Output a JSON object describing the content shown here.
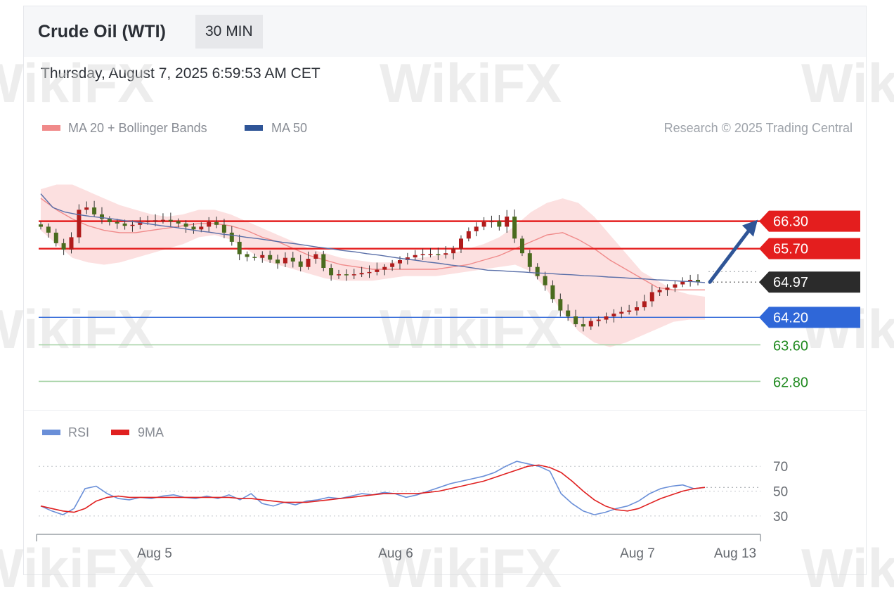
{
  "header": {
    "title": "Crude Oil (WTI)",
    "timeframe": "30 MIN",
    "datetime": "Thursday, August 7, 2025 6:59:53 AM CET"
  },
  "legend_main": [
    {
      "label": "MA 20 + Bollinger Bands",
      "color": "#f08a8a"
    },
    {
      "label": "MA 50",
      "color": "#2f5597"
    }
  ],
  "legend_rsi": [
    {
      "label": "RSI",
      "color": "#6a8fd8"
    },
    {
      "label": "9MA",
      "color": "#e02020"
    }
  ],
  "credit": "Research © 2025 Trading Central",
  "watermark": "WikiFX",
  "chart_data": [
    {
      "type": "line",
      "ylim": [
        62.5,
        67.6
      ],
      "x_ticks": [
        "Aug 5",
        "Aug 6",
        "Aug 7",
        "Aug 13"
      ],
      "price_levels": [
        {
          "value": 66.3,
          "label": "66.30",
          "kind": "resistance",
          "color": "#e41e1e"
        },
        {
          "value": 65.7,
          "label": "65.70",
          "kind": "resistance",
          "color": "#e41e1e"
        },
        {
          "value": 64.97,
          "label": "64.97",
          "kind": "last",
          "color": "#2b2b2b"
        },
        {
          "value": 64.2,
          "label": "64.20",
          "kind": "pivot",
          "color": "#2f67d8"
        },
        {
          "value": 63.6,
          "label": "63.60",
          "kind": "support",
          "color": "#1f8a1f"
        },
        {
          "value": 62.8,
          "label": "62.80",
          "kind": "support",
          "color": "#1f8a1f"
        }
      ],
      "forecast_target": 66.3,
      "close": [
        66.18,
        66.05,
        65.82,
        65.68,
        65.95,
        66.55,
        66.6,
        66.45,
        66.35,
        66.28,
        66.25,
        66.2,
        66.22,
        66.28,
        66.3,
        66.32,
        66.33,
        66.3,
        66.25,
        66.18,
        66.12,
        66.18,
        66.28,
        66.22,
        66.05,
        65.85,
        65.58,
        65.52,
        65.5,
        65.56,
        65.46,
        65.38,
        65.5,
        65.42,
        65.3,
        65.48,
        65.58,
        65.28,
        65.12,
        65.14,
        65.13,
        65.14,
        65.17,
        65.19,
        65.24,
        65.3,
        65.38,
        65.45,
        65.51,
        65.56,
        65.58,
        65.58,
        65.57,
        65.6,
        65.7,
        65.92,
        66.08,
        66.18,
        66.28,
        66.3,
        66.18,
        66.4,
        65.92,
        65.6,
        65.3,
        65.1,
        64.9,
        64.6,
        64.35,
        64.22,
        64.05,
        64.0,
        64.12,
        64.15,
        64.22,
        64.28,
        64.32,
        64.35,
        64.42,
        64.55,
        64.75,
        64.8,
        64.85,
        64.92,
        64.98,
        65.02,
        64.97
      ],
      "ma50": [
        66.9,
        66.6,
        66.5,
        66.45,
        66.41,
        66.38,
        66.35,
        66.31,
        66.28,
        66.24,
        66.2,
        66.17,
        66.13,
        66.09,
        66.06,
        66.02,
        65.99,
        65.95,
        65.92,
        65.88,
        65.84,
        65.81,
        65.77,
        65.73,
        65.7,
        65.66,
        65.63,
        65.59,
        65.56,
        65.52,
        65.48,
        65.45,
        65.41,
        65.38,
        65.34,
        65.31,
        65.27,
        65.23,
        65.22,
        65.2,
        65.19,
        65.17,
        65.16,
        65.14,
        65.13,
        65.11,
        65.1,
        65.08,
        65.07,
        65.05,
        65.04,
        65.02,
        65.01,
        64.99,
        64.98,
        64.96
      ],
      "bollinger_mid": [
        66.8,
        66.55,
        66.35,
        66.2,
        66.1,
        66.05,
        66.05,
        66.1,
        66.15,
        66.2,
        66.25,
        66.25,
        66.2,
        66.1,
        65.95,
        65.85,
        65.7,
        65.55,
        65.45,
        65.35,
        65.3,
        65.25,
        65.25,
        65.25,
        65.25,
        65.25,
        65.3,
        65.35,
        65.45,
        65.55,
        65.7,
        65.85,
        66.0,
        66.05,
        65.9,
        65.7,
        65.45,
        65.25,
        65.05,
        64.85,
        64.8,
        64.8,
        64.8
      ],
      "bollinger_upper": [
        67.0,
        67.1,
        67.1,
        66.95,
        66.8,
        66.65,
        66.55,
        66.45,
        66.4,
        66.45,
        66.55,
        66.55,
        66.45,
        66.3,
        66.15,
        66.0,
        65.85,
        65.7,
        65.6,
        65.5,
        65.45,
        65.4,
        65.4,
        65.45,
        65.5,
        65.55,
        65.6,
        65.7,
        65.8,
        65.95,
        66.2,
        66.5,
        66.7,
        66.8,
        66.7,
        66.4,
        66.0,
        65.6,
        65.2,
        65.0,
        64.8,
        64.7,
        64.65
      ],
      "bollinger_lower": [
        66.1,
        65.8,
        65.5,
        65.4,
        65.35,
        65.4,
        65.5,
        65.6,
        65.7,
        65.8,
        65.95,
        66.0,
        65.9,
        65.7,
        65.45,
        65.35,
        65.25,
        65.15,
        65.05,
        65.0,
        65.0,
        65.0,
        65.05,
        65.1,
        65.1,
        65.1,
        65.15,
        65.2,
        65.25,
        65.3,
        65.35,
        65.2,
        64.8,
        64.3,
        63.9,
        63.65,
        63.55,
        63.65,
        63.8,
        63.95,
        64.1,
        64.15,
        64.15
      ]
    },
    {
      "type": "line",
      "title": "RSI",
      "ylim": [
        22,
        82
      ],
      "y_ticks": [
        70,
        50,
        30
      ],
      "rsi": [
        38,
        34,
        31,
        36,
        52,
        54,
        48,
        44,
        43,
        45,
        44,
        46,
        47,
        45,
        44,
        46,
        44,
        47,
        43,
        48,
        40,
        38,
        41,
        39,
        42,
        43,
        45,
        44,
        46,
        48,
        47,
        49,
        48,
        45,
        47,
        50,
        53,
        56,
        58,
        60,
        62,
        65,
        70,
        74,
        72,
        70,
        66,
        48,
        40,
        34,
        31,
        33,
        36,
        38,
        42,
        48,
        52,
        54,
        55,
        52,
        53
      ],
      "ma9": [
        38,
        36,
        34,
        33,
        36,
        42,
        45,
        46,
        45,
        45,
        45,
        45,
        45,
        45,
        45,
        45,
        45,
        45,
        44,
        44,
        43,
        42,
        41,
        41,
        41,
        42,
        43,
        44,
        45,
        46,
        47,
        48,
        48,
        48,
        48,
        49,
        50,
        52,
        54,
        56,
        58,
        61,
        64,
        67,
        70,
        71,
        69,
        65,
        58,
        50,
        43,
        38,
        35,
        34,
        36,
        40,
        44,
        47,
        50,
        52,
        53
      ]
    }
  ]
}
